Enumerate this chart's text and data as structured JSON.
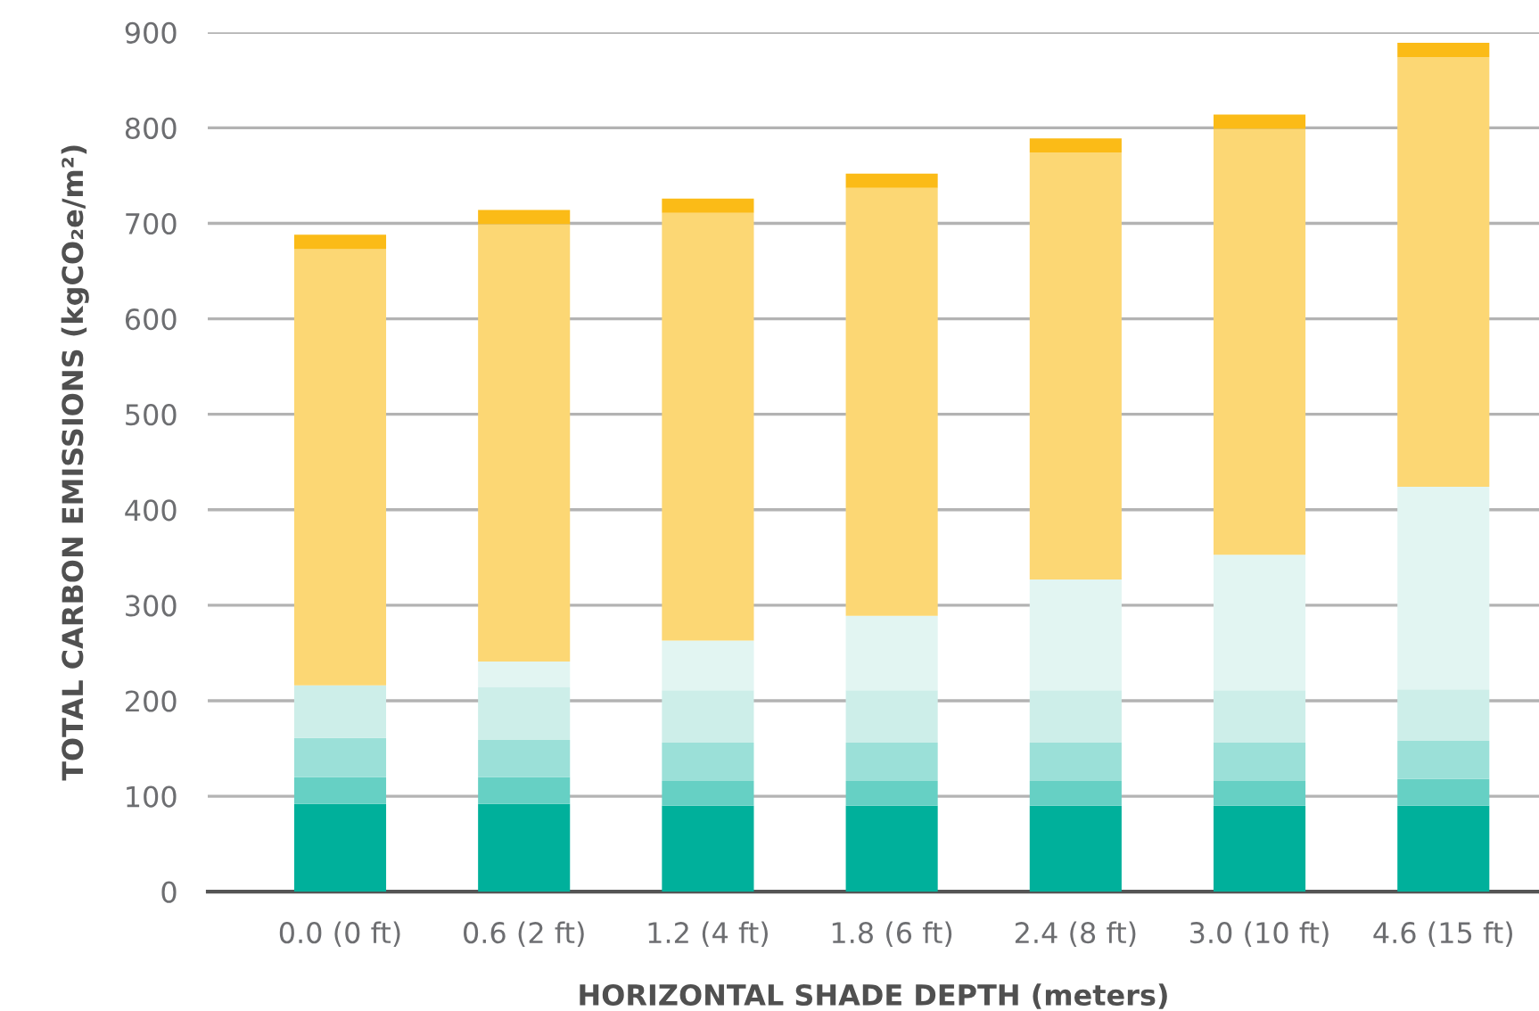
{
  "chart_data": {
    "type": "bar",
    "stacked": true,
    "xlabel": "HORIZONTAL SHADE DEPTH (meters)",
    "ylabel": "TOTAL CARBON EMISSIONS (kgCO₂e/m²)",
    "categories": [
      "0.0 (0 ft)",
      "0.6 (2 ft)",
      "1.2 (4 ft)",
      "1.8 (6 ft)",
      "2.4 (8 ft)",
      "3.0 (10 ft)",
      "4.6 (15 ft)"
    ],
    "series": [
      {
        "color": "#00b09b",
        "values": [
          92,
          92,
          90,
          90,
          90,
          90,
          90
        ]
      },
      {
        "color": "#66d0c4",
        "values": [
          28,
          28,
          26,
          26,
          26,
          26,
          28
        ]
      },
      {
        "color": "#9be0d8",
        "values": [
          41,
          39,
          40,
          40,
          40,
          40,
          40
        ]
      },
      {
        "color": "#cdeee9",
        "values": [
          55,
          55,
          55,
          55,
          55,
          55,
          54
        ]
      },
      {
        "color": "#e2f5f2",
        "values": [
          0,
          27,
          52,
          78,
          116,
          142,
          212
        ]
      },
      {
        "color": "#fcd774",
        "values": [
          457,
          458,
          448,
          448,
          447,
          446,
          450
        ]
      },
      {
        "color": "#fbbb17",
        "values": [
          15,
          15,
          15,
          15,
          15,
          15,
          15
        ]
      }
    ],
    "ylim": [
      0,
      900
    ],
    "yticks": [
      0,
      100,
      200,
      300,
      400,
      500,
      600,
      700,
      800,
      900
    ],
    "grid": "y"
  }
}
